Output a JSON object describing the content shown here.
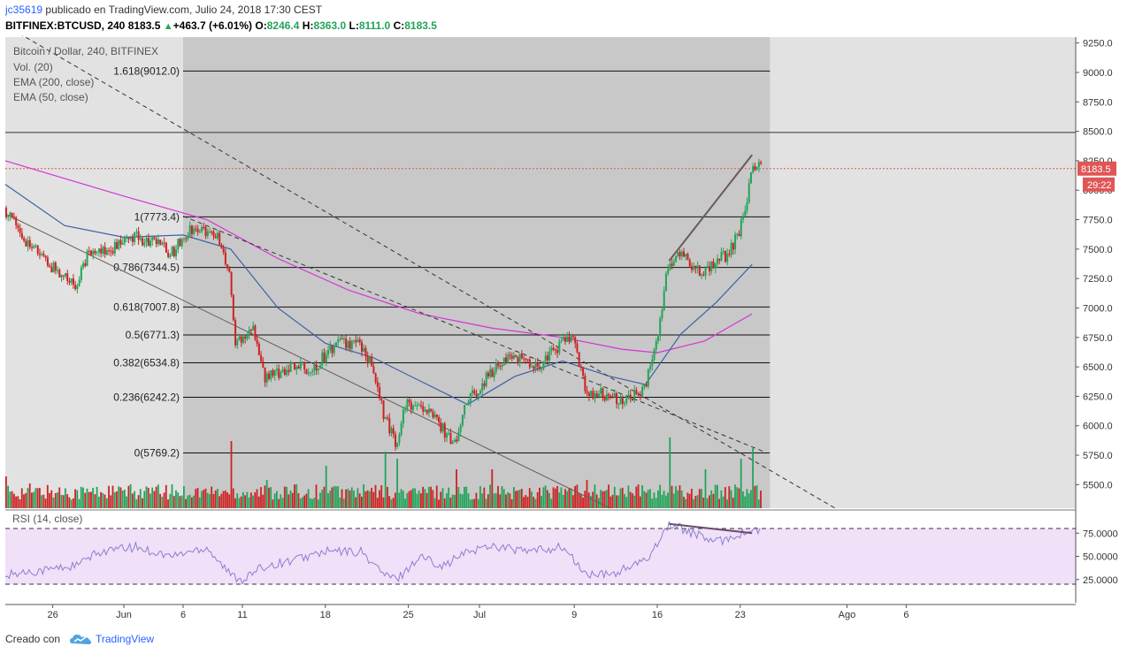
{
  "header": {
    "user": "jc35619",
    "published_text": "publicado en TradingView.com, Julio 24, 2018 17:30 CEST",
    "symbol": "BITFINEX:BTCUSD, 240",
    "last": "8183.5",
    "change": "+463.7 (+6.01%)",
    "o_label": "O:",
    "o_value": "8246.4",
    "h_label": "H:",
    "h_value": "8363.0",
    "l_label": "L:",
    "l_value": "8111.0",
    "c_label": "C:",
    "c_value": "8183.5"
  },
  "colors": {
    "up": "#23a35a",
    "down": "#cc2222",
    "ema200": "#d633d6",
    "ema50": "#3f5fa8",
    "rsi": "#8b7fd0",
    "rsi_band": "#f0e0f8",
    "highlight": "#c8c8c8",
    "background": "#e2e2e2",
    "price_marker": "#e05555"
  },
  "chart_data": {
    "type": "candlestick",
    "title": "Bitcoin / Dollar, 240, BITFINEX",
    "legend": [
      "Vol. (20)",
      "EMA (200, close)",
      "EMA (50, close)"
    ],
    "y_axis": {
      "min": 5300,
      "max": 9300,
      "ticks": [
        "9250.0",
        "9000.0",
        "8750.0",
        "8500.0",
        "8250.0",
        "8000.0",
        "7750.0",
        "7500.0",
        "7250.0",
        "7000.0",
        "6750.0",
        "6500.0",
        "6250.0",
        "6000.0",
        "5750.0",
        "5500.0"
      ],
      "tick_values": [
        9250,
        9000,
        8750,
        8500,
        8250,
        8000,
        7750,
        7500,
        7250,
        7000,
        6750,
        6500,
        6250,
        6000,
        5750,
        5500
      ]
    },
    "x_axis": {
      "labels": [
        "26",
        "Jun",
        "6",
        "11",
        "18",
        "25",
        "Jul",
        "9",
        "16",
        "23",
        "Ago",
        "6"
      ],
      "label_dates": [
        "2018-05-26",
        "2018-06-01",
        "2018-06-06",
        "2018-06-11",
        "2018-06-18",
        "2018-06-25",
        "2018-07-01",
        "2018-07-09",
        "2018-07-16",
        "2018-07-23",
        "2018-08-01",
        "2018-08-06"
      ]
    },
    "fibonacci": [
      {
        "label": "1.618(9012.0)",
        "value": 9012.0
      },
      {
        "label": "1(7773.4)",
        "value": 7773.4
      },
      {
        "label": "0.786(7344.5)",
        "value": 7344.5
      },
      {
        "label": "0.618(7007.8)",
        "value": 7007.8
      },
      {
        "label": "0.5(6771.3)",
        "value": 6771.3
      },
      {
        "label": "0.382(6534.8)",
        "value": 6534.8
      },
      {
        "label": "0.236(6242.2)",
        "value": 6242.2
      },
      {
        "label": "0(5769.2)",
        "value": 5769.2
      }
    ],
    "horizontal_line": 8490,
    "current_price": {
      "value": 8183.5,
      "label": "8183.5",
      "countdown": "29:22"
    },
    "price_path": [
      [
        "2018-05-22",
        7850
      ],
      [
        "2018-05-24",
        7550
      ],
      [
        "2018-05-26",
        7350
      ],
      [
        "2018-05-28",
        7200
      ],
      [
        "2018-05-29",
        7450
      ],
      [
        "2018-05-31",
        7500
      ],
      [
        "2018-06-02",
        7600
      ],
      [
        "2018-06-04",
        7550
      ],
      [
        "2018-06-05",
        7450
      ],
      [
        "2018-06-07",
        7700
      ],
      [
        "2018-06-09",
        7600
      ],
      [
        "2018-06-10",
        7300
      ],
      [
        "2018-06-10T12:00",
        6700
      ],
      [
        "2018-06-12",
        6850
      ],
      [
        "2018-06-13",
        6400
      ],
      [
        "2018-06-15",
        6500
      ],
      [
        "2018-06-17",
        6480
      ],
      [
        "2018-06-19",
        6700
      ],
      [
        "2018-06-21",
        6700
      ],
      [
        "2018-06-22",
        6500
      ],
      [
        "2018-06-23",
        6100
      ],
      [
        "2018-06-24",
        5850
      ],
      [
        "2018-06-25",
        6200
      ],
      [
        "2018-06-27",
        6100
      ],
      [
        "2018-06-29",
        5850
      ],
      [
        "2018-06-30",
        6200
      ],
      [
        "2018-07-02",
        6450
      ],
      [
        "2018-07-04",
        6600
      ],
      [
        "2018-07-06",
        6500
      ],
      [
        "2018-07-07",
        6600
      ],
      [
        "2018-07-08",
        6700
      ],
      [
        "2018-07-09",
        6750
      ],
      [
        "2018-07-10",
        6300
      ],
      [
        "2018-07-12",
        6250
      ],
      [
        "2018-07-13",
        6200
      ],
      [
        "2018-07-15",
        6300
      ],
      [
        "2018-07-16",
        6700
      ],
      [
        "2018-07-17",
        7350
      ],
      [
        "2018-07-18",
        7450
      ],
      [
        "2018-07-20",
        7300
      ],
      [
        "2018-07-21",
        7400
      ],
      [
        "2018-07-22",
        7450
      ],
      [
        "2018-07-23",
        7650
      ],
      [
        "2018-07-23T12:00",
        7800
      ],
      [
        "2018-07-24",
        8183.5
      ]
    ],
    "ema200": [
      [
        "2018-05-22",
        8250
      ],
      [
        "2018-06-01",
        7950
      ],
      [
        "2018-06-08",
        7750
      ],
      [
        "2018-06-14",
        7420
      ],
      [
        "2018-06-20",
        7150
      ],
      [
        "2018-06-26",
        6950
      ],
      [
        "2018-07-02",
        6830
      ],
      [
        "2018-07-08",
        6750
      ],
      [
        "2018-07-13",
        6650
      ],
      [
        "2018-07-16",
        6620
      ],
      [
        "2018-07-20",
        6720
      ],
      [
        "2018-07-24",
        6950
      ]
    ],
    "ema50": [
      [
        "2018-05-22",
        8050
      ],
      [
        "2018-05-27",
        7700
      ],
      [
        "2018-06-01",
        7600
      ],
      [
        "2018-06-06",
        7620
      ],
      [
        "2018-06-10",
        7500
      ],
      [
        "2018-06-14",
        7000
      ],
      [
        "2018-06-18",
        6700
      ],
      [
        "2018-06-22",
        6580
      ],
      [
        "2018-06-26",
        6380
      ],
      [
        "2018-06-30",
        6180
      ],
      [
        "2018-07-04",
        6420
      ],
      [
        "2018-07-08",
        6550
      ],
      [
        "2018-07-12",
        6420
      ],
      [
        "2018-07-15",
        6350
      ],
      [
        "2018-07-18",
        6780
      ],
      [
        "2018-07-21",
        7050
      ],
      [
        "2018-07-24",
        7370
      ]
    ],
    "trendlines": [
      {
        "name": "long downtrend",
        "from": [
          "2018-05-22",
          7800
        ],
        "to": [
          "2018-07-12",
          5300
        ],
        "style": "solid"
      },
      {
        "name": "dashed upper",
        "from": [
          "2018-05-22",
          9400
        ],
        "to": [
          "2018-07-31",
          5300
        ],
        "style": "dashed"
      },
      {
        "name": "dashed lower",
        "from": [
          "2018-06-06",
          7780
        ],
        "to": [
          "2018-07-25",
          5780
        ],
        "style": "dashed"
      },
      {
        "name": "rising wedge",
        "from": [
          "2018-07-17",
          7400
        ],
        "to": [
          "2018-07-24",
          8300
        ],
        "style": "solid"
      }
    ],
    "rsi": {
      "label": "RSI (14, close)",
      "y_ticks": [
        "75.0000",
        "50.0000",
        "25.0000"
      ],
      "tick_values": [
        75,
        50,
        25
      ],
      "upper": 80,
      "lower": 20,
      "values": [
        [
          "2018-05-22",
          30
        ],
        [
          "2018-05-25",
          35
        ],
        [
          "2018-05-28",
          40
        ],
        [
          "2018-05-30",
          55
        ],
        [
          "2018-06-02",
          60
        ],
        [
          "2018-06-05",
          50
        ],
        [
          "2018-06-08",
          60
        ],
        [
          "2018-06-10",
          30
        ],
        [
          "2018-06-11",
          25
        ],
        [
          "2018-06-13",
          40
        ],
        [
          "2018-06-15",
          45
        ],
        [
          "2018-06-18",
          55
        ],
        [
          "2018-06-21",
          55
        ],
        [
          "2018-06-23",
          30
        ],
        [
          "2018-06-24",
          25
        ],
        [
          "2018-06-26",
          50
        ],
        [
          "2018-06-28",
          40
        ],
        [
          "2018-06-30",
          55
        ],
        [
          "2018-07-02",
          62
        ],
        [
          "2018-07-05",
          55
        ],
        [
          "2018-07-08",
          60
        ],
        [
          "2018-07-10",
          30
        ],
        [
          "2018-07-12",
          30
        ],
        [
          "2018-07-15",
          45
        ],
        [
          "2018-07-16",
          65
        ],
        [
          "2018-07-17",
          85
        ],
        [
          "2018-07-19",
          75
        ],
        [
          "2018-07-21",
          65
        ],
        [
          "2018-07-22",
          70
        ],
        [
          "2018-07-24",
          78
        ]
      ],
      "divergence": {
        "from": [
          "2018-07-17",
          85
        ],
        "to": [
          "2018-07-24",
          75
        ]
      }
    },
    "volume": {
      "bars": [
        [
          "2018-05-22",
          0.45,
          "down"
        ],
        [
          "2018-05-24",
          0.35,
          "up"
        ],
        [
          "2018-06-06",
          0.3,
          "up"
        ],
        [
          "2018-06-10",
          0.95,
          "down"
        ],
        [
          "2018-06-13",
          0.4,
          "down"
        ],
        [
          "2018-06-18",
          0.6,
          "up"
        ],
        [
          "2018-06-23",
          0.8,
          "down"
        ],
        [
          "2018-06-24",
          0.7,
          "up"
        ],
        [
          "2018-06-29",
          0.55,
          "up"
        ],
        [
          "2018-07-02",
          0.55,
          "up"
        ],
        [
          "2018-07-10",
          0.4,
          "down"
        ],
        [
          "2018-07-17",
          1.0,
          "up"
        ],
        [
          "2018-07-20",
          0.55,
          "down"
        ],
        [
          "2018-07-23",
          0.7,
          "up"
        ],
        [
          "2018-07-24",
          0.85,
          "up"
        ]
      ]
    }
  },
  "footer": {
    "created": "Creado con",
    "brand": "TradingView"
  }
}
